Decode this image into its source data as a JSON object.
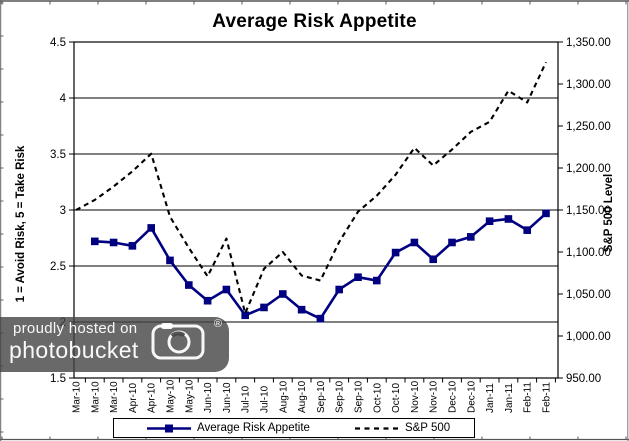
{
  "chart_data": {
    "type": "line",
    "title": "Average Risk Appetite",
    "categories": [
      "Mar-10",
      "Mar-10",
      "Mar-10",
      "Apr-10",
      "Apr-10",
      "May-10",
      "May-10",
      "Jun-10",
      "Jun-10",
      "Jul-10",
      "Jul-10",
      "Aug-10",
      "Aug-10",
      "Sep-10",
      "Sep-10",
      "Sep-10",
      "Oct-10",
      "Oct-10",
      "Nov-10",
      "Nov-10",
      "Dec-10",
      "Dec-10",
      "Jan-11",
      "Jan-11",
      "Feb-11",
      "Feb-11"
    ],
    "series": [
      {
        "name": "Average Risk Appetite",
        "axis": "left",
        "color": "#000080",
        "marker": "square",
        "line_style": "solid",
        "values": [
          null,
          2.72,
          2.71,
          2.68,
          2.84,
          2.55,
          2.33,
          2.19,
          2.29,
          2.06,
          2.13,
          2.25,
          2.11,
          2.03,
          2.29,
          2.4,
          2.37,
          2.62,
          2.71,
          2.56,
          2.71,
          2.76,
          2.9,
          2.92,
          2.82,
          2.97
        ]
      },
      {
        "name": "S&P 500",
        "axis": "right",
        "color": "#000000",
        "marker": "none",
        "line_style": "dashed",
        "values": [
          1150,
          1162,
          1178,
          1196,
          1217,
          1142,
          1105,
          1071,
          1116,
          1027,
          1080,
          1100,
          1072,
          1066,
          1112,
          1148,
          1167,
          1192,
          1224,
          1203,
          1222,
          1243,
          1255,
          1292,
          1278,
          1326
        ]
      }
    ],
    "left_axis": {
      "title": "1 = Avoid Risk, 5 = Take Risk",
      "min": 1.5,
      "max": 4.5,
      "step": 0.5,
      "tick_labels": [
        "4.5",
        "4",
        "3.5",
        "3",
        "2.5",
        "2",
        "1.5"
      ]
    },
    "right_axis": {
      "title": "S&P 500 Level",
      "min": 950,
      "max": 1350,
      "step": 50,
      "tick_labels": [
        "1,350.00",
        "1,300.00",
        "1,250.00",
        "1,200.00",
        "1,150.00",
        "1,100.00",
        "1,050.00",
        "1,000.00",
        "950.00"
      ]
    },
    "grid": true,
    "legend_position": "bottom"
  },
  "watermark": {
    "line1": "proudly hosted on",
    "line2": "photobucket",
    "registered": "®"
  }
}
